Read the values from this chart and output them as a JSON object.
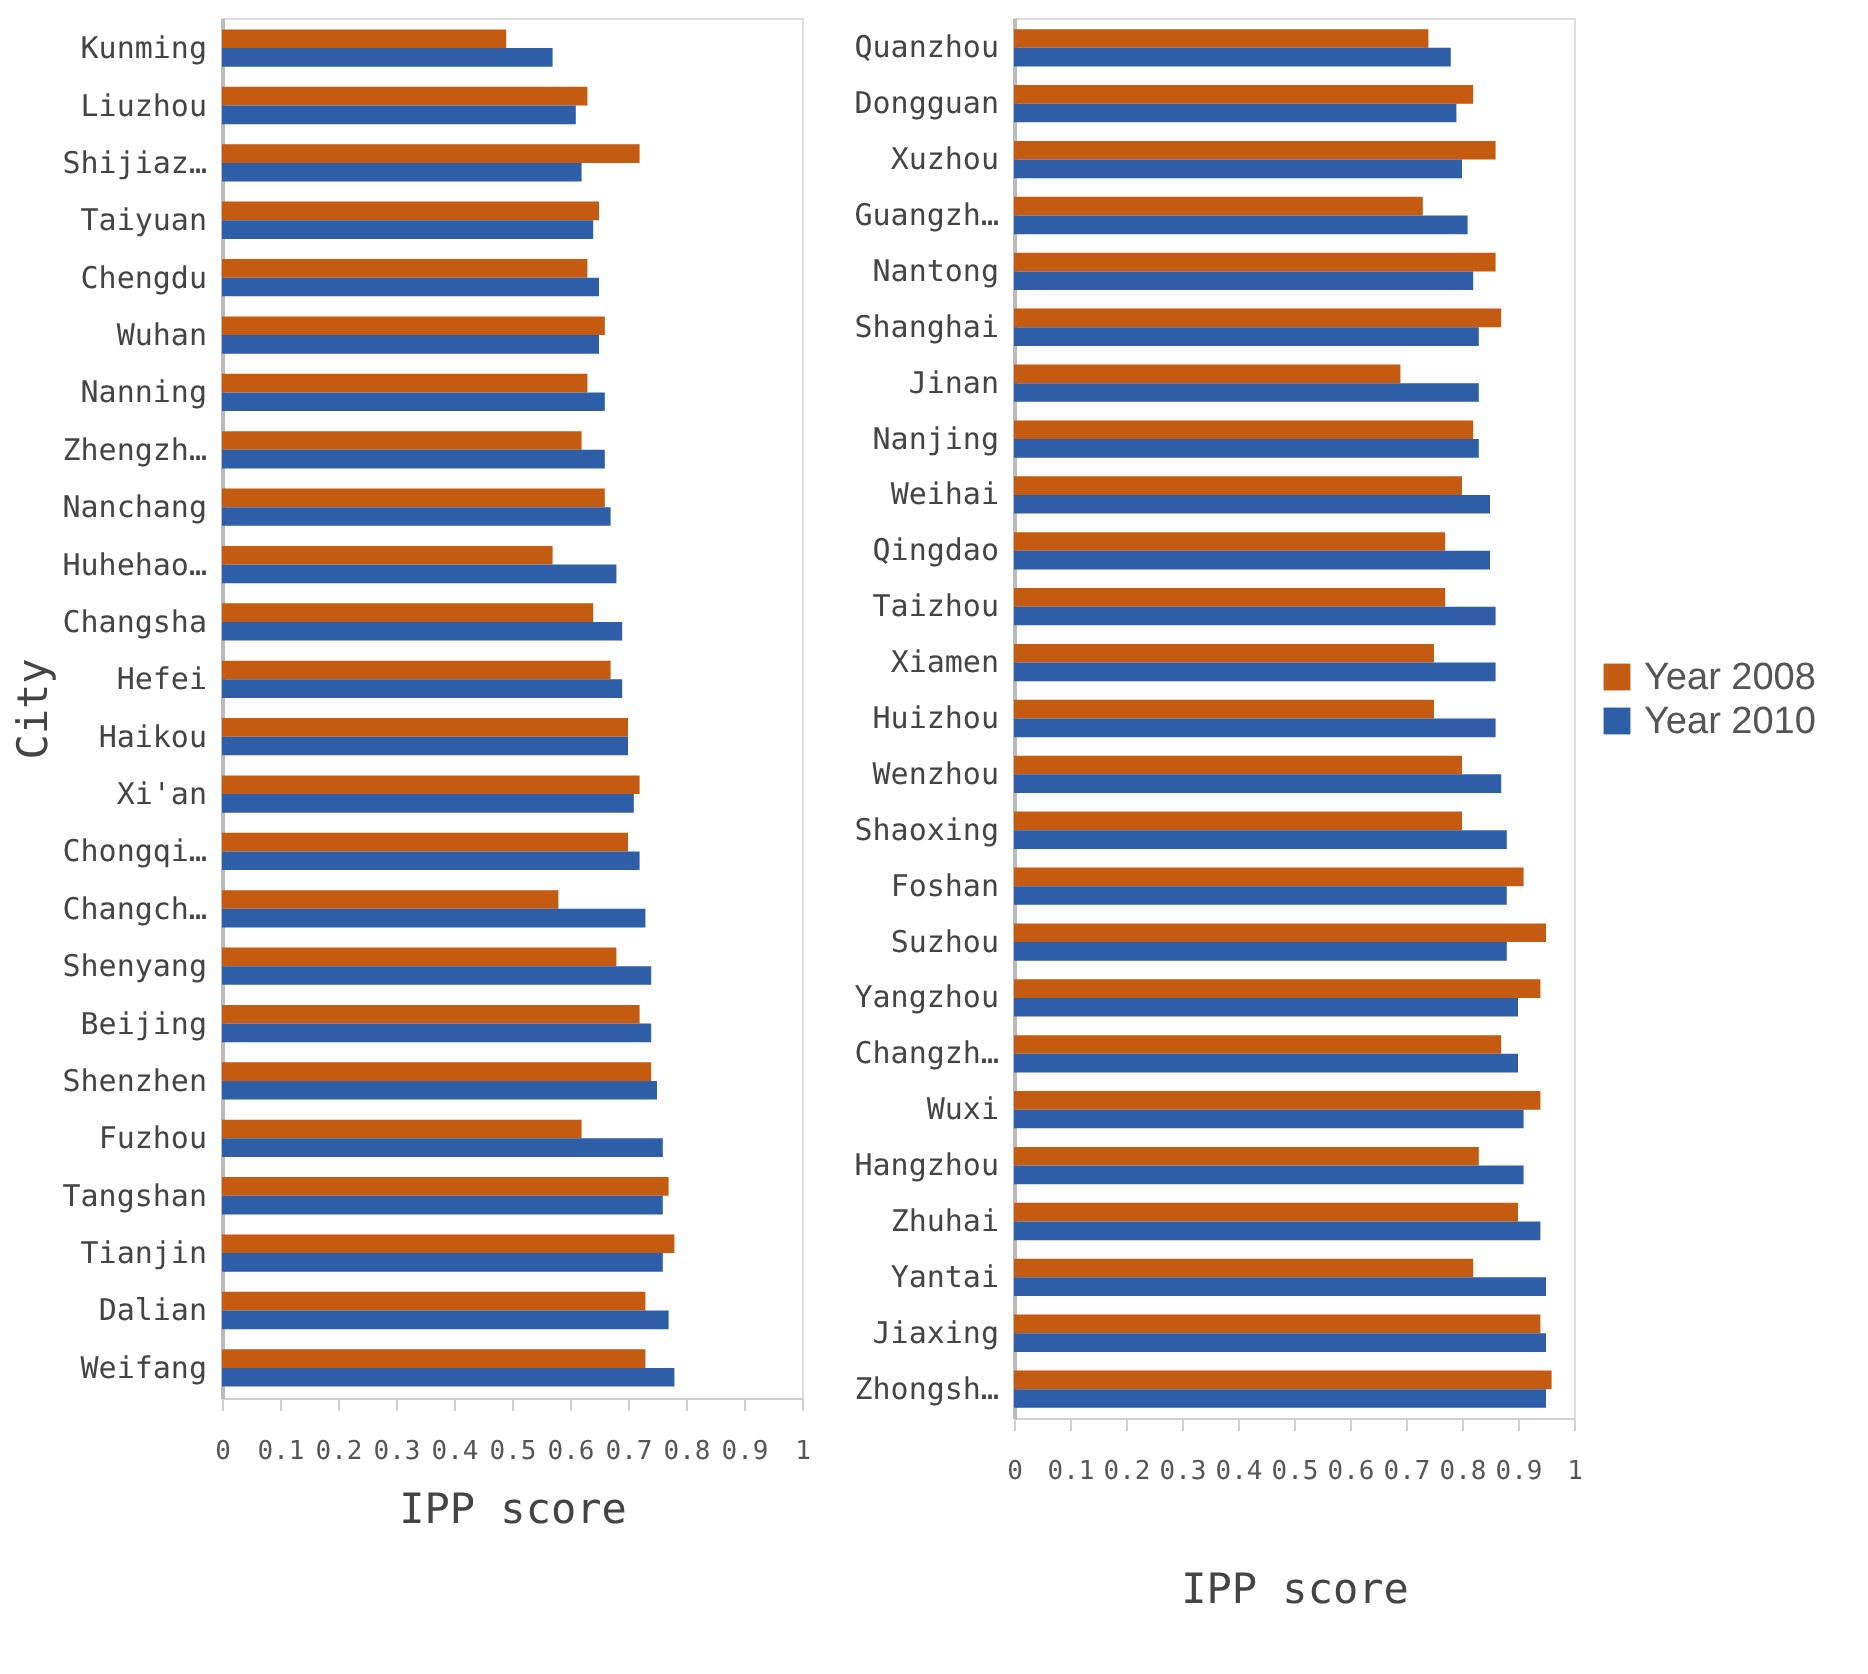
{
  "chart_data": [
    {
      "type": "bar",
      "orientation": "horizontal",
      "ylabel": "City",
      "xlabel": "IPP score",
      "categories": [
        "Kunming",
        "Liuzhou",
        "Shijiaz…",
        "Taiyuan",
        "Chengdu",
        "Wuhan",
        "Nanning",
        "Zhengzh…",
        "Nanchang",
        "Huhehao…",
        "Changsha",
        "Hefei",
        "Haikou",
        "Xi'an",
        "Chongqi…",
        "Changch…",
        "Shenyang",
        "Beijing",
        "Shenzhen",
        "Fuzhou",
        "Tangshan",
        "Tianjin",
        "Dalian",
        "Weifang"
      ],
      "series": [
        {
          "color": "#c55a11",
          "values": [
            0.49,
            0.63,
            0.72,
            0.65,
            0.63,
            0.66,
            0.63,
            0.62,
            0.66,
            0.57,
            0.64,
            0.67,
            0.7,
            0.72,
            0.7,
            0.58,
            0.68,
            0.72,
            0.74,
            0.62,
            0.77,
            0.78,
            0.73,
            0.73
          ]
        },
        {
          "color": "#2f5ea8",
          "values": [
            0.57,
            0.61,
            0.62,
            0.64,
            0.65,
            0.65,
            0.66,
            0.66,
            0.67,
            0.68,
            0.69,
            0.69,
            0.7,
            0.71,
            0.72,
            0.73,
            0.74,
            0.74,
            0.75,
            0.76,
            0.76,
            0.76,
            0.77,
            0.78
          ]
        }
      ],
      "xlim": [
        0,
        1
      ],
      "xticks": [
        0,
        0.1,
        0.2,
        0.3,
        0.4,
        0.5,
        0.6,
        0.7,
        0.8,
        0.9,
        1
      ],
      "grid": false,
      "legend": false
    },
    {
      "type": "bar",
      "orientation": "horizontal",
      "xlabel": "IPP score",
      "categories": [
        "Quanzhou",
        "Dongguan",
        "Xuzhou",
        "Guangzh…",
        "Nantong",
        "Shanghai",
        "Jinan",
        "Nanjing",
        "Weihai",
        "Qingdao",
        "Taizhou",
        "Xiamen",
        "Huizhou",
        "Wenzhou",
        "Shaoxing",
        "Foshan",
        "Suzhou",
        "Yangzhou",
        "Changzh…",
        "Wuxi",
        "Hangzhou",
        "Zhuhai",
        "Yantai",
        "Jiaxing",
        "Zhongsh…"
      ],
      "series": [
        {
          "name": "Year 2008",
          "color": "#c55a11",
          "values": [
            0.74,
            0.82,
            0.86,
            0.73,
            0.86,
            0.87,
            0.69,
            0.82,
            0.8,
            0.77,
            0.77,
            0.75,
            0.75,
            0.8,
            0.8,
            0.91,
            0.95,
            0.94,
            0.87,
            0.94,
            0.83,
            0.9,
            0.82,
            0.94,
            0.96
          ]
        },
        {
          "name": "Year 2010",
          "color": "#2f5ea8",
          "values": [
            0.78,
            0.79,
            0.8,
            0.81,
            0.82,
            0.83,
            0.83,
            0.83,
            0.85,
            0.85,
            0.86,
            0.86,
            0.86,
            0.87,
            0.88,
            0.88,
            0.88,
            0.9,
            0.9,
            0.91,
            0.91,
            0.94,
            0.95,
            0.95,
            0.95
          ]
        }
      ],
      "xlim": [
        0,
        1
      ],
      "xticks": [
        0,
        0.1,
        0.2,
        0.3,
        0.4,
        0.5,
        0.6,
        0.7,
        0.8,
        0.9,
        1
      ],
      "grid": false,
      "legend": "right"
    }
  ]
}
